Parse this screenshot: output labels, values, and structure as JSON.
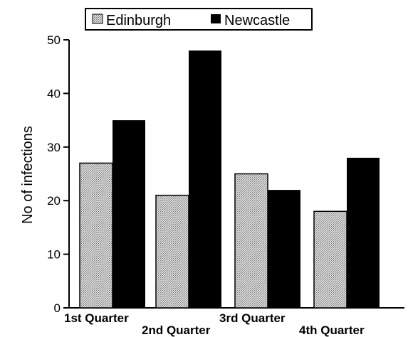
{
  "chart_data": {
    "type": "bar",
    "categories": [
      "1st Quarter",
      "2nd Quarter",
      "3rd Quarter",
      "4th Quarter"
    ],
    "series": [
      {
        "name": "Edinburgh",
        "values": [
          27,
          21,
          25,
          18
        ],
        "color": "#c8c8c8",
        "pattern": "dotted-grey"
      },
      {
        "name": "Newcastle",
        "values": [
          35,
          48,
          22,
          28
        ],
        "color": "#000000",
        "pattern": "solid-black"
      }
    ],
    "ylabel": "No of infections",
    "xlabel": "",
    "ylim": [
      0,
      50
    ],
    "yticks": [
      0,
      10,
      20,
      30,
      40,
      50
    ],
    "grid": false,
    "legend_position": "top-center"
  }
}
